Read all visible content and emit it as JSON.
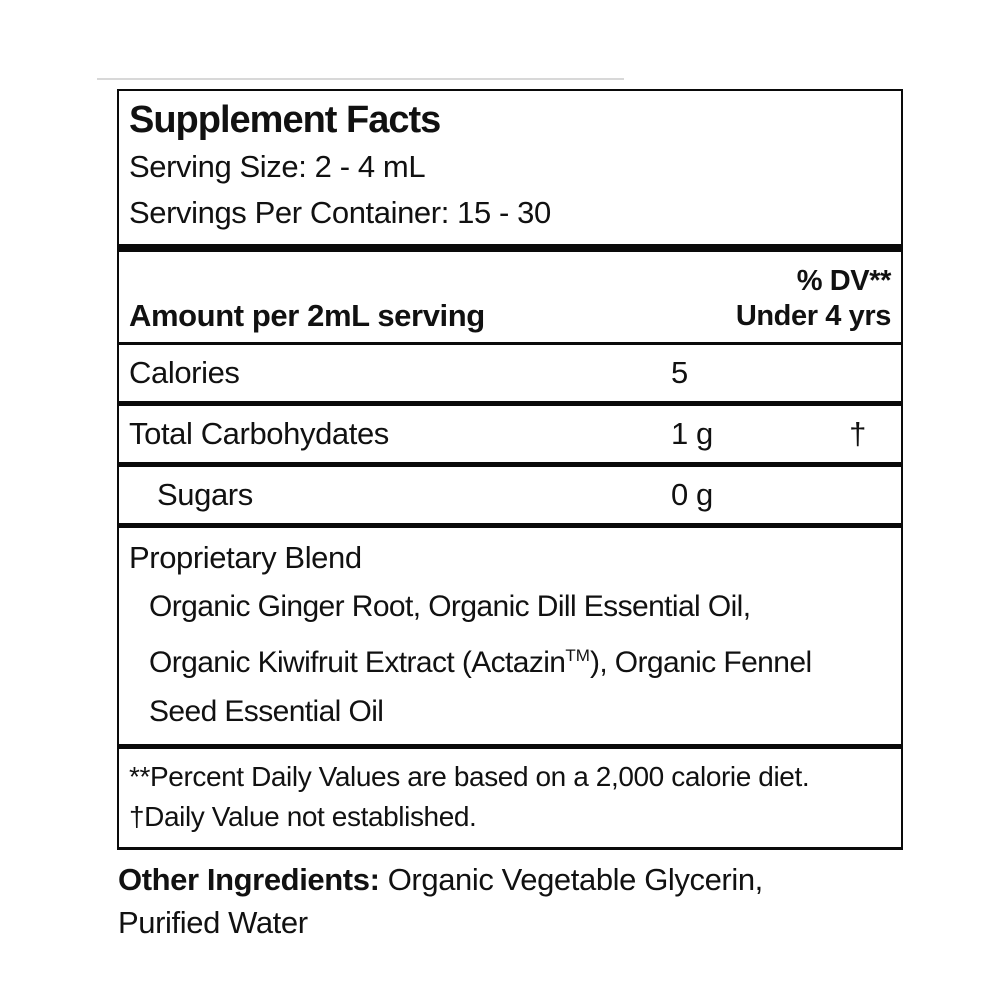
{
  "panel": {
    "title": "Supplement Facts",
    "serving_size": "Serving Size: 2 - 4 mL",
    "servings_per_container": "Servings Per Container: 15 - 30",
    "columns": {
      "amount_header": "Amount per 2mL serving",
      "dv_header_line1": "% DV**",
      "dv_header_line2": "Under 4 yrs"
    },
    "rows": {
      "calories": {
        "name": "Calories",
        "amount": "5",
        "dv": ""
      },
      "total_carbohydates": {
        "name": "Total Carbohydates",
        "amount": "1 g",
        "dv": "†"
      },
      "sugars": {
        "name": "Sugars",
        "amount": "0 g",
        "dv": ""
      }
    },
    "proprietary_blend": {
      "name": "Proprietary Blend",
      "ingredients_line1": "Organic Ginger Root, Organic Dill Essential Oil,",
      "ingredients_line2_pre": "Organic Kiwifruit Extract (Actazin",
      "trademark": "TM",
      "ingredients_line2_post": "), Organic Fennel",
      "ingredients_line3": "Seed Essential Oil"
    },
    "footnotes": {
      "percent_dv": "**Percent Daily Values are based on a 2,000 calorie diet.",
      "daily_value": "†Daily Value not established."
    }
  },
  "other_ingredients": {
    "label": "Other Ingredients:",
    "line1": " Organic Vegetable Glycerin,",
    "line2": "Purified Water"
  }
}
